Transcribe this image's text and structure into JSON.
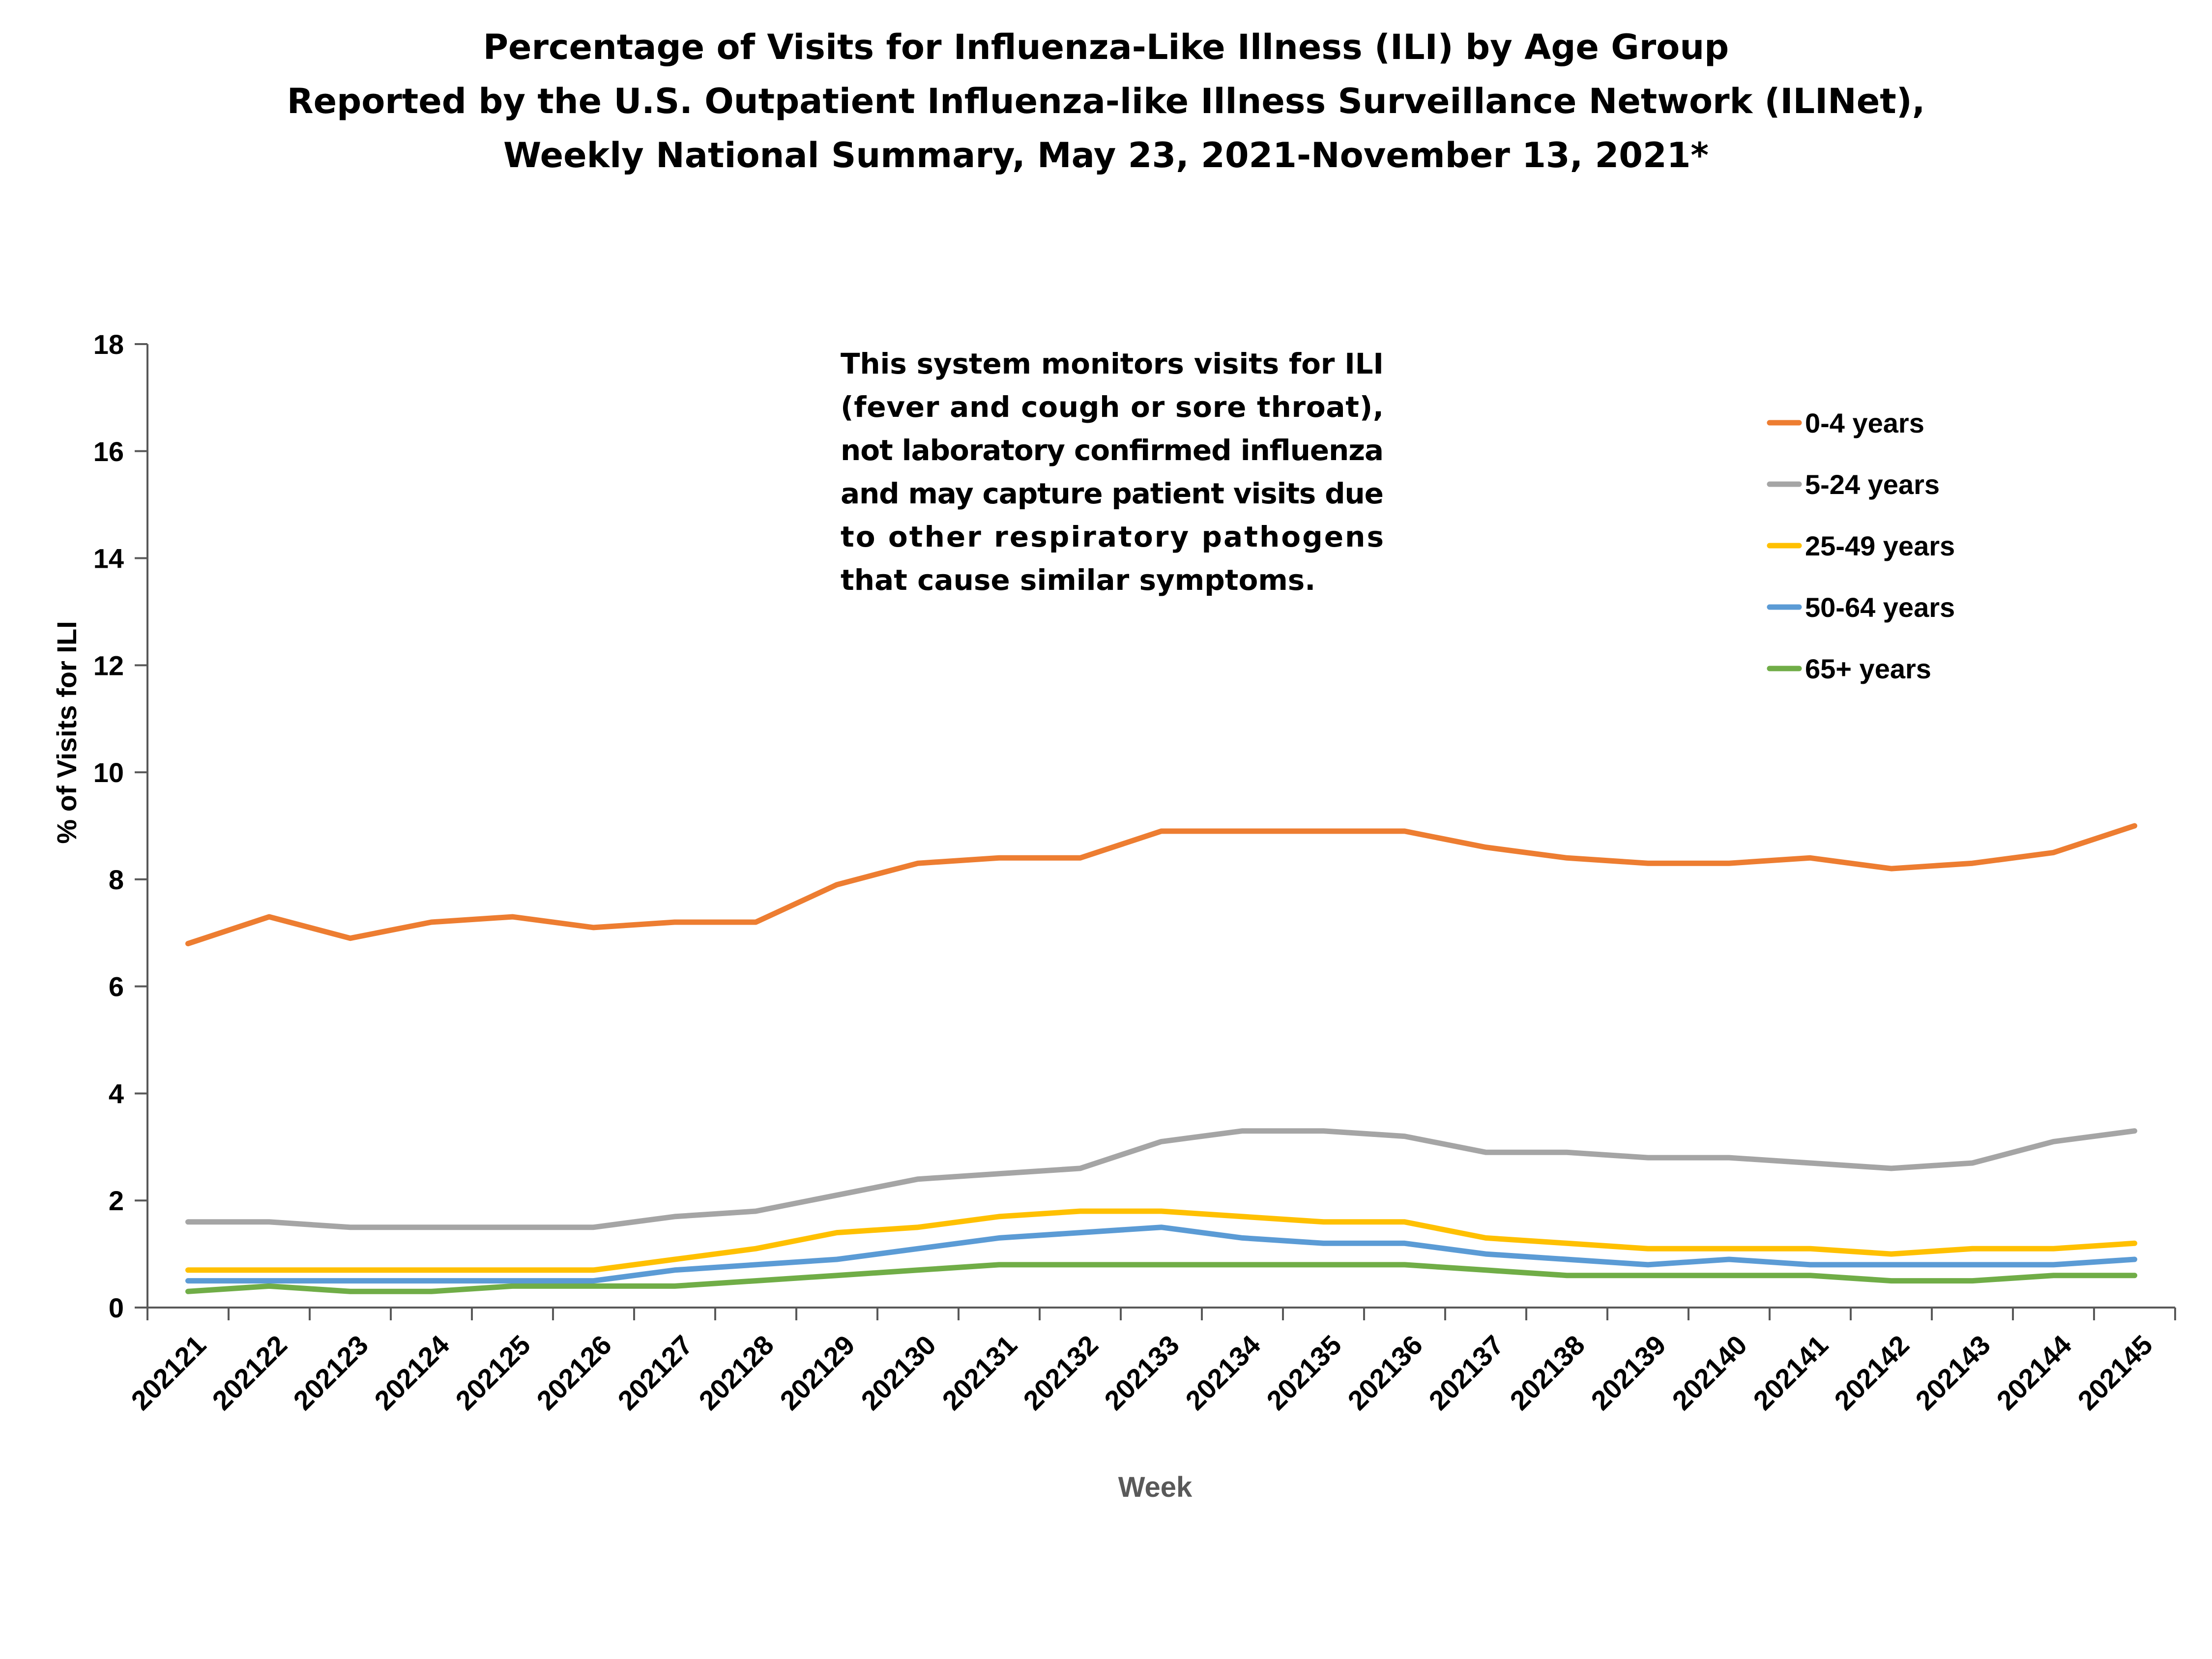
{
  "chart_data": {
    "type": "line",
    "title_lines": [
      "Percentage of Visits for Influenza-Like Illness (ILI) by Age Group",
      "Reported by the U.S. Outpatient Influenza-like Illness Surveillance Network (ILINet),",
      "Weekly National Summary, May 23, 2021-November 13, 2021*"
    ],
    "xlabel": "Week",
    "ylabel": "% of Visits for ILI",
    "ylim": [
      0,
      18
    ],
    "yticks": [
      0,
      2,
      4,
      6,
      8,
      10,
      12,
      14,
      16,
      18
    ],
    "categories": [
      "202121",
      "202122",
      "202123",
      "202124",
      "202125",
      "202126",
      "202127",
      "202128",
      "202129",
      "202130",
      "202131",
      "202132",
      "202133",
      "202134",
      "202135",
      "202136",
      "202137",
      "202138",
      "202139",
      "202140",
      "202141",
      "202142",
      "202143",
      "202144",
      "202145"
    ],
    "series": [
      {
        "name": "0-4 years",
        "color": "#ED7D31",
        "values": [
          6.8,
          7.3,
          6.9,
          7.2,
          7.3,
          7.1,
          7.2,
          7.2,
          7.9,
          8.3,
          8.4,
          8.4,
          8.9,
          8.9,
          8.9,
          8.9,
          8.6,
          8.4,
          8.3,
          8.3,
          8.4,
          8.2,
          8.3,
          8.5,
          9.0
        ]
      },
      {
        "name": "5-24 years",
        "color": "#A5A5A5",
        "values": [
          1.6,
          1.6,
          1.5,
          1.5,
          1.5,
          1.5,
          1.7,
          1.8,
          2.1,
          2.4,
          2.5,
          2.6,
          3.1,
          3.3,
          3.3,
          3.2,
          2.9,
          2.9,
          2.8,
          2.8,
          2.7,
          2.6,
          2.7,
          3.1,
          3.3
        ]
      },
      {
        "name": "25-49 years",
        "color": "#FFC000",
        "values": [
          0.7,
          0.7,
          0.7,
          0.7,
          0.7,
          0.7,
          0.9,
          1.1,
          1.4,
          1.5,
          1.7,
          1.8,
          1.8,
          1.7,
          1.6,
          1.6,
          1.3,
          1.2,
          1.1,
          1.1,
          1.1,
          1.0,
          1.1,
          1.1,
          1.2
        ]
      },
      {
        "name": "50-64 years",
        "color": "#5B9BD5",
        "values": [
          0.5,
          0.5,
          0.5,
          0.5,
          0.5,
          0.5,
          0.7,
          0.8,
          0.9,
          1.1,
          1.3,
          1.4,
          1.5,
          1.3,
          1.2,
          1.2,
          1.0,
          0.9,
          0.8,
          0.9,
          0.8,
          0.8,
          0.8,
          0.8,
          0.9
        ]
      },
      {
        "name": "65+ years",
        "color": "#70AD47",
        "values": [
          0.3,
          0.4,
          0.3,
          0.3,
          0.4,
          0.4,
          0.4,
          0.5,
          0.6,
          0.7,
          0.8,
          0.8,
          0.8,
          0.8,
          0.8,
          0.8,
          0.7,
          0.6,
          0.6,
          0.6,
          0.6,
          0.5,
          0.5,
          0.6,
          0.6
        ]
      }
    ],
    "legend_position": "top-right",
    "grid": false,
    "annotation_lines": [
      "This system monitors visits for ILI",
      "(fever and cough or sore throat),",
      "not laboratory confirmed influenza",
      "and may capture patient visits due",
      "to other respiratory pathogens",
      "that cause similar symptoms."
    ]
  }
}
